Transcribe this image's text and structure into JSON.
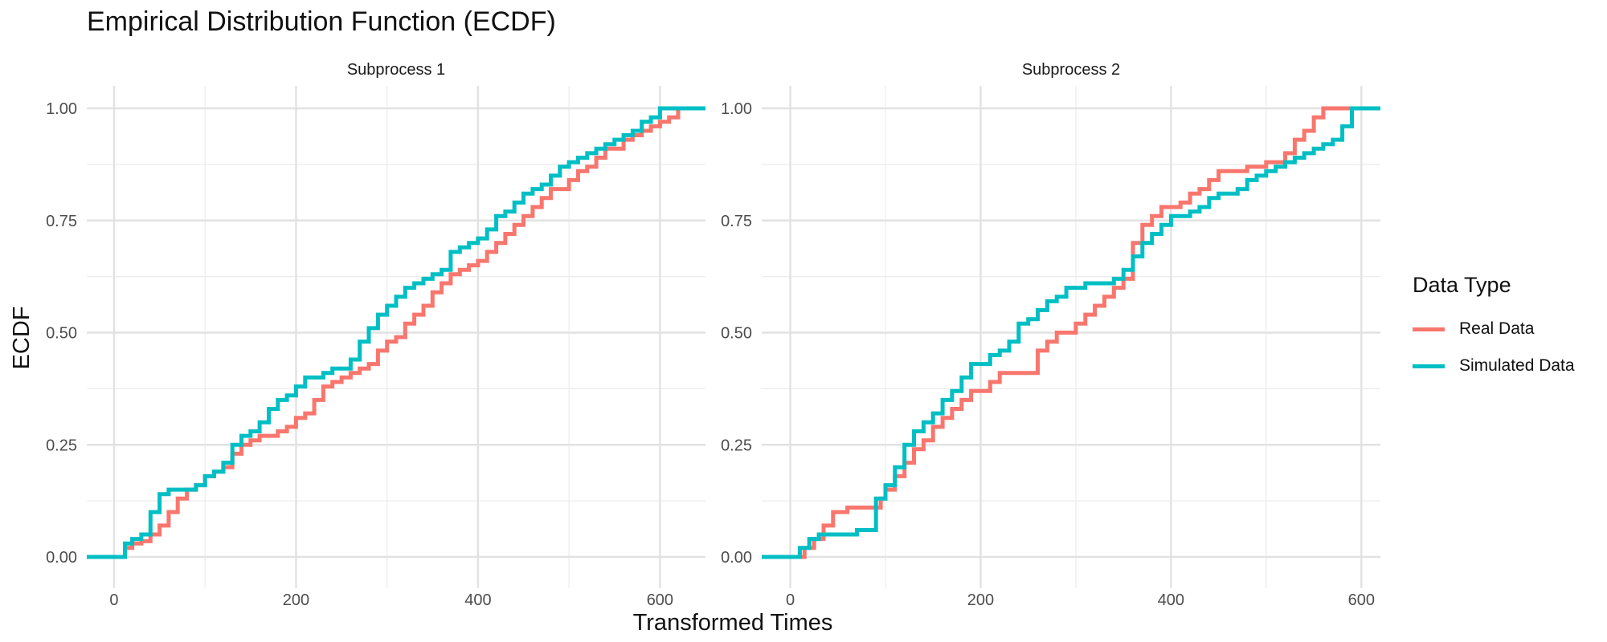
{
  "title": "Empirical Distribution Function (ECDF)",
  "chart_data": {
    "type": "line",
    "step": true,
    "title": "Empirical Distribution Function (ECDF)",
    "xlabel": "Transformed Times",
    "ylabel": "ECDF",
    "legend": {
      "title": "Data Type",
      "placement": "right",
      "entries": [
        {
          "label": "Real Data",
          "color": "#F8766D"
        },
        {
          "label": "Simulated Data",
          "color": "#00BFC4"
        }
      ]
    },
    "grid": true,
    "ylim": [
      0,
      1
    ],
    "y_ticks": [
      0,
      0.25,
      0.5,
      0.75,
      1
    ],
    "y_tick_labels": [
      "0.00",
      "0.25",
      "0.50",
      "0.75",
      "1.00"
    ],
    "facets": [
      {
        "name": "Subprocess 1",
        "xlim": [
          -30,
          650
        ],
        "x_ticks": [
          0,
          200,
          400,
          600
        ],
        "x_tick_labels": [
          "0",
          "200",
          "400",
          "600"
        ],
        "series": [
          {
            "name": "Real Data",
            "color": "#F8766D",
            "x": [
              -30,
              5,
              12,
              20,
              30,
              40,
              50,
              60,
              70,
              80,
              90,
              100,
              110,
              120,
              130,
              140,
              150,
              160,
              170,
              180,
              190,
              200,
              210,
              220,
              230,
              240,
              250,
              260,
              270,
              280,
              290,
              300,
              310,
              320,
              330,
              340,
              350,
              360,
              370,
              380,
              390,
              400,
              410,
              420,
              430,
              440,
              450,
              460,
              470,
              480,
              490,
              500,
              510,
              520,
              530,
              540,
              550,
              560,
              570,
              580,
              590,
              600,
              610,
              620,
              650
            ],
            "y": [
              0,
              0,
              0.02,
              0.03,
              0.035,
              0.05,
              0.07,
              0.1,
              0.13,
              0.15,
              0.16,
              0.18,
              0.19,
              0.2,
              0.23,
              0.25,
              0.26,
              0.27,
              0.27,
              0.28,
              0.29,
              0.31,
              0.32,
              0.35,
              0.38,
              0.39,
              0.4,
              0.41,
              0.42,
              0.43,
              0.46,
              0.48,
              0.49,
              0.52,
              0.54,
              0.56,
              0.59,
              0.61,
              0.63,
              0.64,
              0.65,
              0.66,
              0.68,
              0.7,
              0.72,
              0.74,
              0.76,
              0.78,
              0.8,
              0.82,
              0.82,
              0.84,
              0.86,
              0.87,
              0.89,
              0.91,
              0.91,
              0.93,
              0.94,
              0.95,
              0.96,
              0.97,
              0.98,
              1.0,
              1.0
            ]
          },
          {
            "name": "Simulated Data",
            "color": "#00BFC4",
            "x": [
              -30,
              5,
              12,
              20,
              30,
              40,
              50,
              60,
              70,
              80,
              90,
              100,
              110,
              120,
              130,
              140,
              150,
              160,
              170,
              180,
              190,
              200,
              210,
              220,
              230,
              240,
              250,
              260,
              270,
              280,
              290,
              300,
              310,
              320,
              330,
              340,
              350,
              360,
              370,
              380,
              390,
              400,
              410,
              420,
              430,
              440,
              450,
              460,
              470,
              480,
              490,
              500,
              510,
              520,
              530,
              540,
              550,
              560,
              570,
              580,
              590,
              600,
              610,
              620,
              650
            ],
            "y": [
              0,
              0,
              0.03,
              0.04,
              0.05,
              0.1,
              0.14,
              0.15,
              0.15,
              0.15,
              0.16,
              0.18,
              0.19,
              0.21,
              0.25,
              0.27,
              0.28,
              0.3,
              0.33,
              0.35,
              0.36,
              0.38,
              0.4,
              0.4,
              0.41,
              0.42,
              0.42,
              0.44,
              0.48,
              0.51,
              0.54,
              0.56,
              0.58,
              0.6,
              0.61,
              0.62,
              0.63,
              0.64,
              0.68,
              0.69,
              0.7,
              0.71,
              0.73,
              0.76,
              0.77,
              0.79,
              0.81,
              0.82,
              0.83,
              0.85,
              0.87,
              0.88,
              0.89,
              0.9,
              0.91,
              0.92,
              0.93,
              0.94,
              0.95,
              0.97,
              0.98,
              1.0,
              1.0,
              1.0,
              1.0
            ]
          }
        ]
      },
      {
        "name": "Subprocess 2",
        "xlim": [
          -30,
          620
        ],
        "x_ticks": [
          0,
          200,
          400,
          600
        ],
        "x_tick_labels": [
          "0",
          "200",
          "400",
          "600"
        ],
        "series": [
          {
            "name": "Real Data",
            "color": "#F8766D",
            "x": [
              -30,
              0,
              15,
              25,
              35,
              45,
              60,
              75,
              95,
              100,
              110,
              120,
              130,
              140,
              150,
              160,
              170,
              180,
              190,
              200,
              210,
              220,
              230,
              250,
              260,
              270,
              280,
              290,
              300,
              310,
              320,
              330,
              340,
              350,
              360,
              370,
              380,
              390,
              400,
              410,
              420,
              430,
              440,
              450,
              460,
              480,
              500,
              520,
              530,
              540,
              550,
              560,
              575,
              590,
              620
            ],
            "y": [
              0,
              0,
              0.02,
              0.04,
              0.07,
              0.1,
              0.11,
              0.11,
              0.13,
              0.15,
              0.18,
              0.21,
              0.24,
              0.26,
              0.29,
              0.31,
              0.33,
              0.35,
              0.37,
              0.37,
              0.39,
              0.41,
              0.41,
              0.41,
              0.46,
              0.48,
              0.5,
              0.5,
              0.52,
              0.54,
              0.56,
              0.58,
              0.6,
              0.62,
              0.7,
              0.74,
              0.76,
              0.78,
              0.78,
              0.79,
              0.81,
              0.82,
              0.84,
              0.86,
              0.86,
              0.87,
              0.88,
              0.9,
              0.93,
              0.95,
              0.98,
              1.0,
              1.0,
              1.0,
              1.0
            ]
          },
          {
            "name": "Simulated Data",
            "color": "#00BFC4",
            "x": [
              -30,
              0,
              10,
              20,
              30,
              50,
              70,
              85,
              90,
              100,
              110,
              120,
              130,
              140,
              150,
              160,
              170,
              180,
              190,
              200,
              210,
              220,
              230,
              240,
              250,
              260,
              270,
              280,
              290,
              300,
              310,
              320,
              330,
              340,
              350,
              360,
              370,
              380,
              390,
              400,
              410,
              420,
              430,
              440,
              450,
              460,
              470,
              480,
              490,
              500,
              510,
              520,
              530,
              540,
              550,
              560,
              570,
              580,
              590,
              620
            ],
            "y": [
              0,
              0,
              0.02,
              0.04,
              0.05,
              0.05,
              0.06,
              0.06,
              0.13,
              0.16,
              0.2,
              0.25,
              0.28,
              0.3,
              0.32,
              0.35,
              0.37,
              0.4,
              0.43,
              0.43,
              0.45,
              0.46,
              0.48,
              0.52,
              0.53,
              0.55,
              0.57,
              0.58,
              0.6,
              0.6,
              0.61,
              0.61,
              0.61,
              0.62,
              0.64,
              0.67,
              0.7,
              0.72,
              0.74,
              0.76,
              0.76,
              0.77,
              0.78,
              0.8,
              0.81,
              0.81,
              0.82,
              0.84,
              0.85,
              0.86,
              0.87,
              0.88,
              0.89,
              0.9,
              0.91,
              0.92,
              0.93,
              0.96,
              1.0,
              1.0
            ]
          }
        ]
      }
    ]
  }
}
